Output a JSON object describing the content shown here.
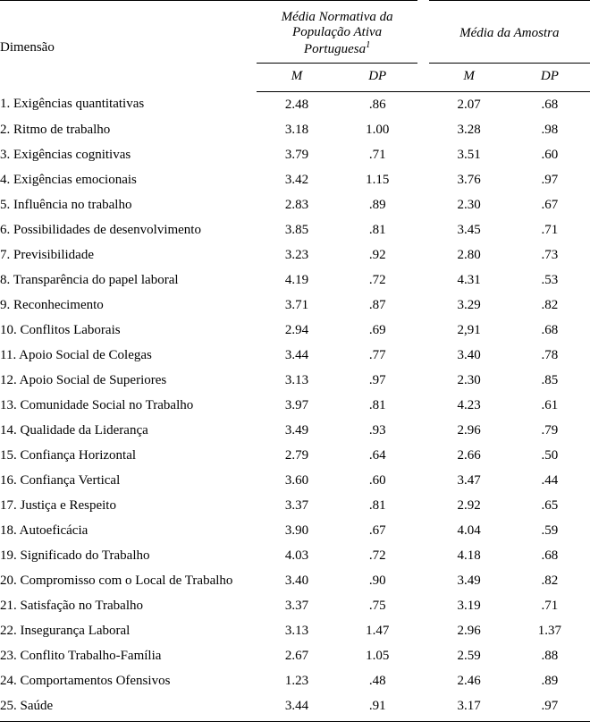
{
  "headers": {
    "dimension": "Dimensão",
    "group1_line1": "Média Normativa da",
    "group1_line2": "População Ativa Portuguesa",
    "group1_note": "1",
    "group2": "Média da Amostra",
    "M": "M",
    "DP": "DP"
  },
  "rows": [
    {
      "label": "1. Exigências quantitativas",
      "m1": "2.48",
      "dp1": ".86",
      "m2": "2.07",
      "dp2": ".68"
    },
    {
      "label": "2. Ritmo de trabalho",
      "m1": "3.18",
      "dp1": "1.00",
      "m2": "3.28",
      "dp2": ".98"
    },
    {
      "label": "3. Exigências cognitivas",
      "m1": "3.79",
      "dp1": ".71",
      "m2": "3.51",
      "dp2": ".60"
    },
    {
      "label": "4. Exigências emocionais",
      "m1": "3.42",
      "dp1": "1.15",
      "m2": "3.76",
      "dp2": ".97"
    },
    {
      "label": "5. Influência no trabalho",
      "m1": "2.83",
      "dp1": ".89",
      "m2": "2.30",
      "dp2": ".67"
    },
    {
      "label": "6. Possibilidades de desenvolvimento",
      "m1": "3.85",
      "dp1": ".81",
      "m2": "3.45",
      "dp2": ".71"
    },
    {
      "label": "7. Previsibilidade",
      "m1": "3.23",
      "dp1": ".92",
      "m2": "2.80",
      "dp2": ".73"
    },
    {
      "label": "8. Transparência do papel laboral",
      "m1": "4.19",
      "dp1": ".72",
      "m2": "4.31",
      "dp2": ".53"
    },
    {
      "label": "9. Reconhecimento",
      "m1": "3.71",
      "dp1": ".87",
      "m2": "3.29",
      "dp2": ".82"
    },
    {
      "label": "10. Conflitos Laborais",
      "m1": "2.94",
      "dp1": ".69",
      "m2": "2,91",
      "dp2": ".68"
    },
    {
      "label": "11. Apoio Social de Colegas",
      "m1": "3.44",
      "dp1": ".77",
      "m2": "3.40",
      "dp2": ".78"
    },
    {
      "label": "12. Apoio Social de Superiores",
      "m1": "3.13",
      "dp1": ".97",
      "m2": "2.30",
      "dp2": ".85"
    },
    {
      "label": "13. Comunidade Social no Trabalho",
      "m1": "3.97",
      "dp1": ".81",
      "m2": "4.23",
      "dp2": ".61"
    },
    {
      "label": "14. Qualidade da Liderança",
      "m1": "3.49",
      "dp1": ".93",
      "m2": "2.96",
      "dp2": ".79"
    },
    {
      "label": "15. Confiança Horizontal",
      "m1": "2.79",
      "dp1": ".64",
      "m2": "2.66",
      "dp2": ".50"
    },
    {
      "label": "16. Confiança Vertical",
      "m1": "3.60",
      "dp1": ".60",
      "m2": "3.47",
      "dp2": ".44"
    },
    {
      "label": "17. Justiça e Respeito",
      "m1": "3.37",
      "dp1": ".81",
      "m2": "2.92",
      "dp2": ".65"
    },
    {
      "label": "18. Autoeficácia",
      "m1": "3.90",
      "dp1": ".67",
      "m2": "4.04",
      "dp2": ".59"
    },
    {
      "label": "19. Significado do Trabalho",
      "m1": "4.03",
      "dp1": ".72",
      "m2": "4.18",
      "dp2": ".68"
    },
    {
      "label": "20. Compromisso com o Local de Trabalho",
      "m1": "3.40",
      "dp1": ".90",
      "m2": "3.49",
      "dp2": ".82"
    },
    {
      "label": "21. Satisfação no Trabalho",
      "m1": "3.37",
      "dp1": ".75",
      "m2": "3.19",
      "dp2": ".71"
    },
    {
      "label": "22. Insegurança Laboral",
      "m1": "3.13",
      "dp1": "1.47",
      "m2": "2.96",
      "dp2": "1.37"
    },
    {
      "label": "23. Conflito Trabalho-Família",
      "m1": "2.67",
      "dp1": "1.05",
      "m2": "2.59",
      "dp2": ".88"
    },
    {
      "label": "24. Comportamentos Ofensivos",
      "m1": "1.23",
      "dp1": ".48",
      "m2": "2.46",
      "dp2": ".89"
    },
    {
      "label": "25. Saúde",
      "m1": "3.44",
      "dp1": ".91",
      "m2": "3.17",
      "dp2": ".97"
    }
  ]
}
